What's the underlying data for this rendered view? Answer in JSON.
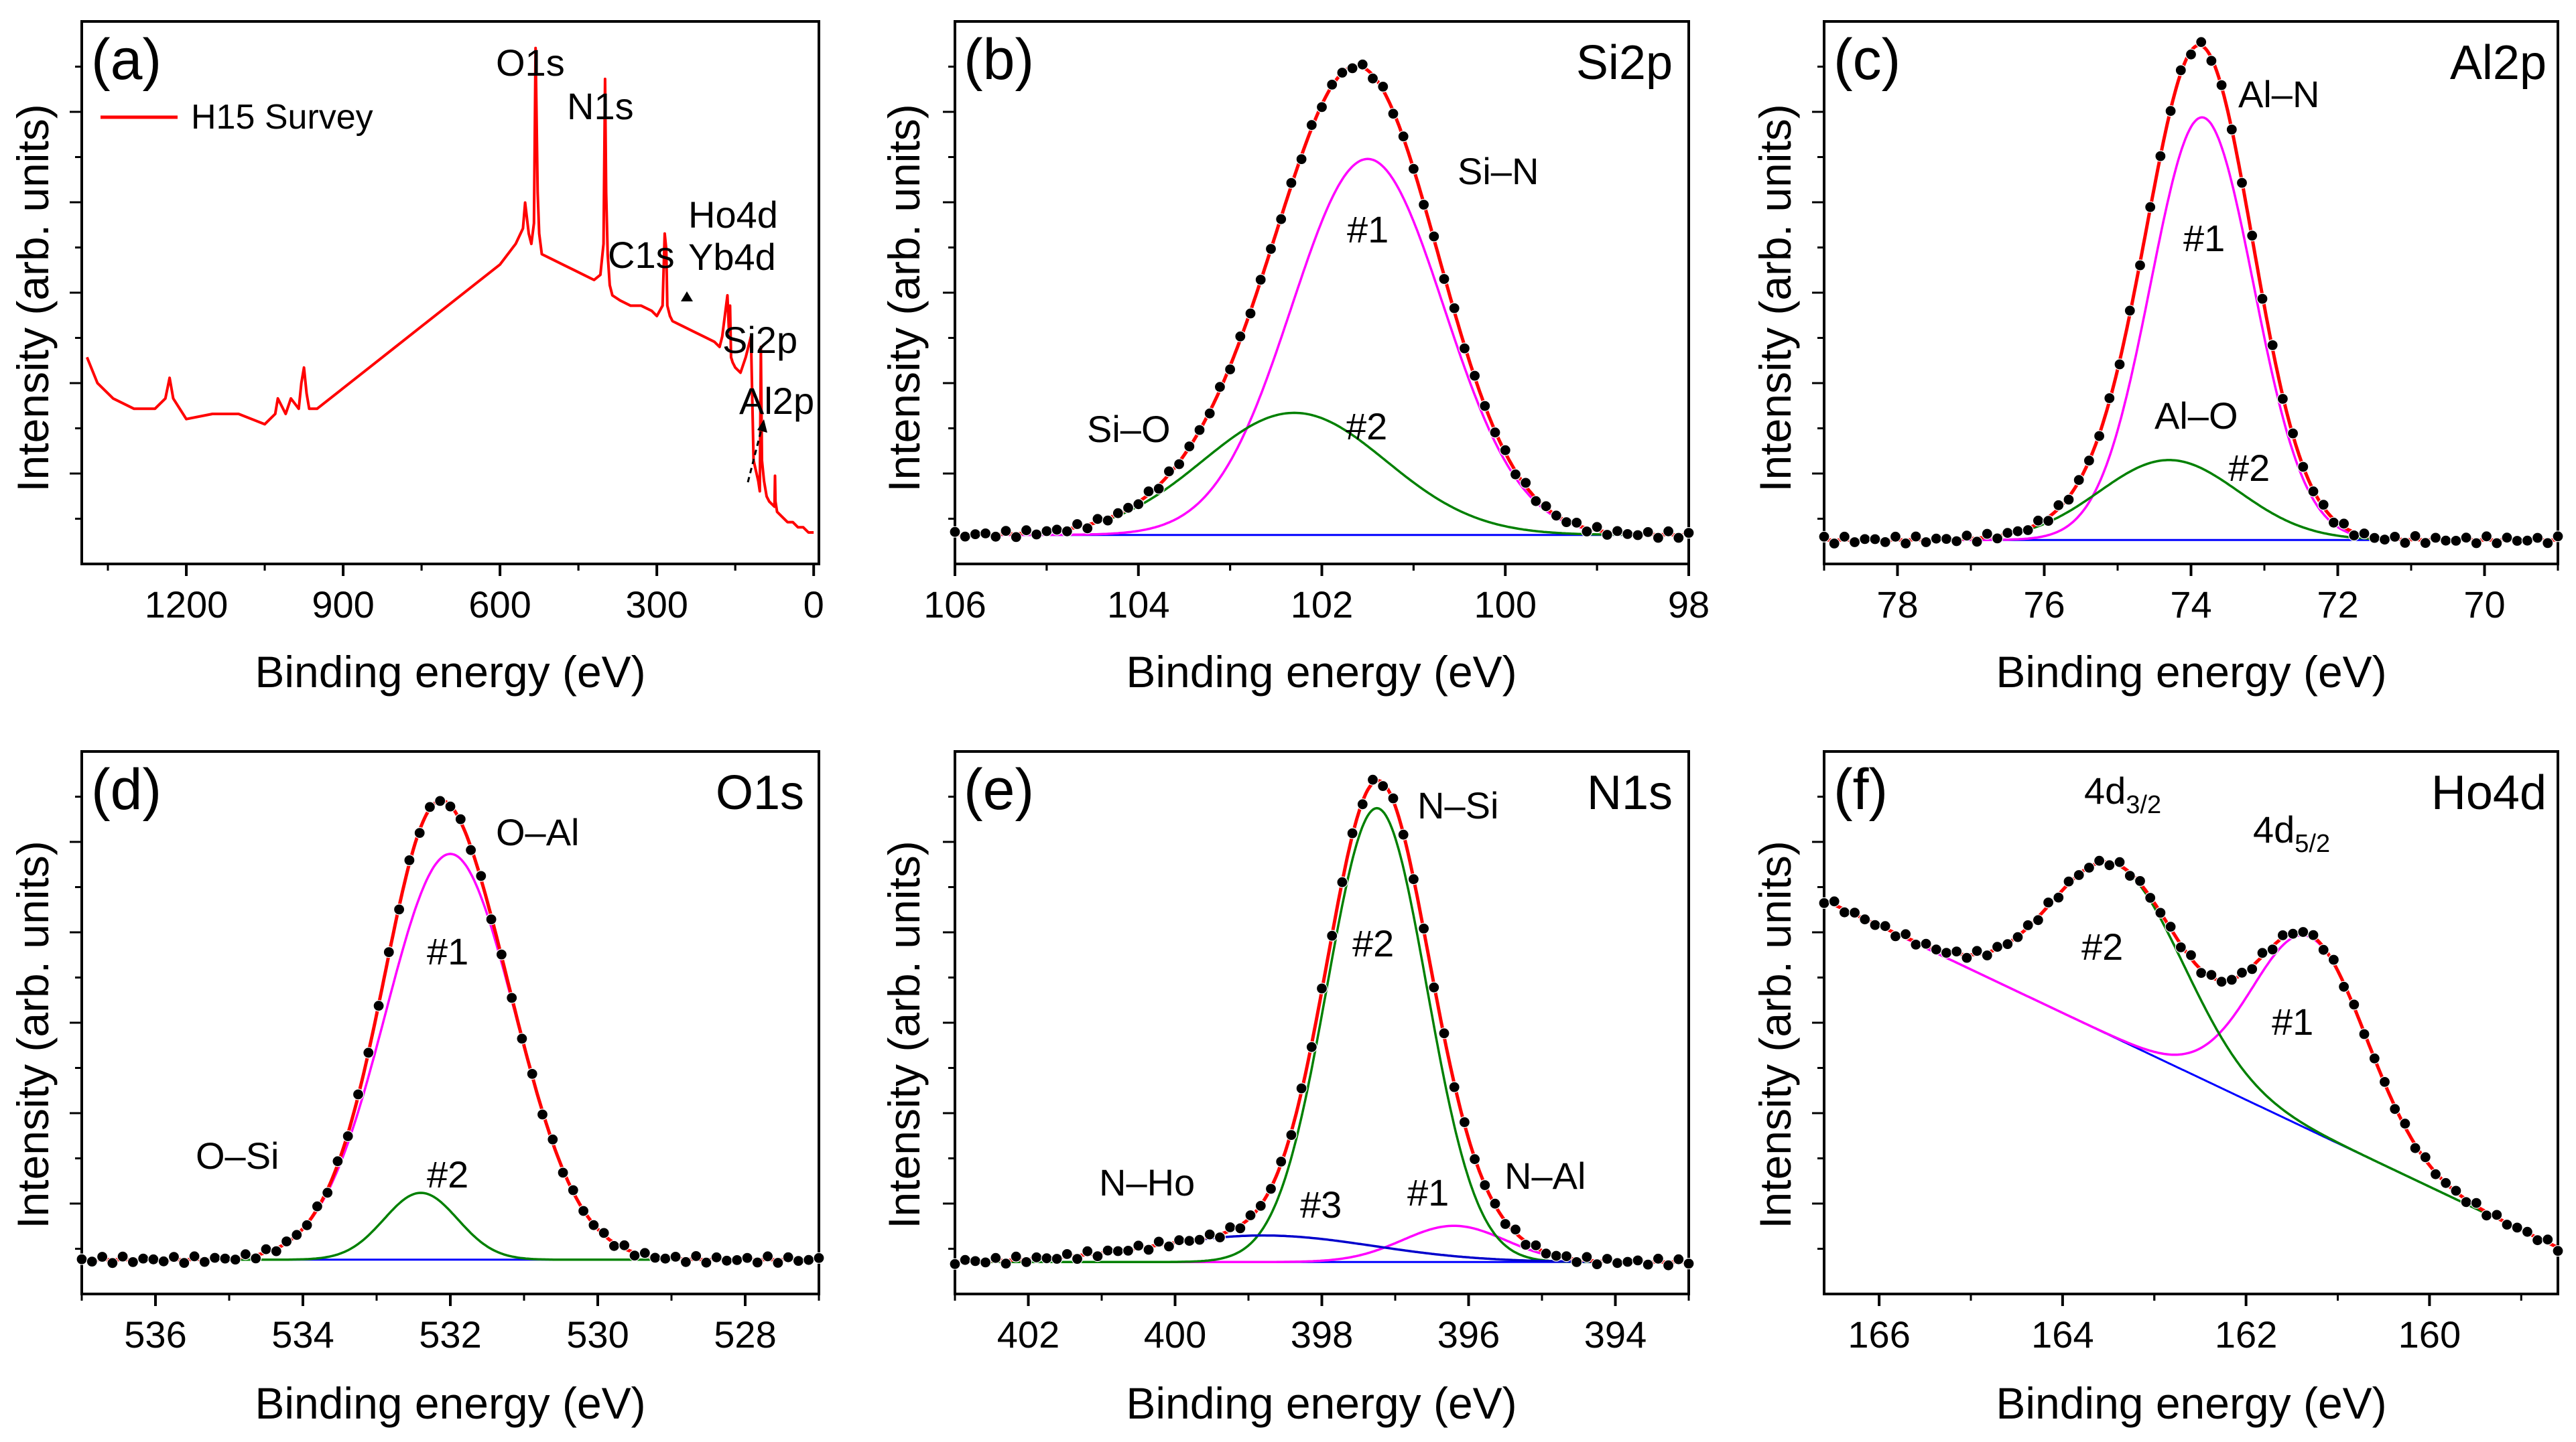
{
  "figure": {
    "background": "#ffffff"
  },
  "colors": {
    "envelope": "#ff0000",
    "peak1": "#ff00ff",
    "peak2": "#008000",
    "peak3": "#0000cc",
    "background_line": "#0000ff",
    "data": "#000000"
  },
  "chart_data": [
    {
      "id": "a",
      "type": "line",
      "panel_label": "(a)",
      "title": "",
      "xlabel": "Binding energy (eV)",
      "ylabel": "Intensity (arb. units)",
      "xlim": [
        1400,
        -10
      ],
      "ylim": [
        0,
        100
      ],
      "xticks": [
        1200,
        900,
        600,
        300,
        0
      ],
      "legend": {
        "entries": [
          "H15 Survey"
        ],
        "position": "top-left"
      },
      "series": [
        {
          "name": "H15 Survey",
          "color": "#ff0000",
          "x": [
            1390,
            1370,
            1340,
            1300,
            1260,
            1240,
            1232,
            1225,
            1200,
            1150,
            1100,
            1050,
            1030,
            1025,
            1010,
            1000,
            985,
            980,
            975,
            970,
            965,
            950,
            900,
            850,
            800,
            750,
            700,
            650,
            600,
            570,
            556,
            552,
            545,
            540,
            535,
            532,
            528,
            525,
            520,
            500,
            480,
            460,
            440,
            420,
            408,
            402,
            399,
            397,
            394,
            390,
            385,
            370,
            350,
            330,
            310,
            300,
            289,
            285,
            282,
            280,
            275,
            270,
            250,
            230,
            210,
            190,
            180,
            175,
            165,
            162,
            160,
            158,
            155,
            150,
            140,
            130,
            120,
            115,
            106,
            103,
            101,
            99,
            95,
            90,
            85,
            75,
            74,
            73,
            70,
            60,
            50,
            40,
            30,
            20,
            10,
            5,
            0
          ],
          "y": [
            38,
            33,
            30,
            28,
            28,
            30,
            34,
            30,
            26,
            27,
            27,
            25,
            27,
            30,
            27,
            30,
            28,
            33,
            36,
            31,
            28,
            28,
            32,
            36,
            40,
            44,
            48,
            52,
            56,
            60,
            63,
            68,
            62,
            60,
            64,
            98,
            70,
            62,
            58,
            57,
            56,
            55,
            54,
            53,
            54,
            60,
            92,
            70,
            58,
            52,
            50,
            49,
            48,
            48,
            47,
            46,
            48,
            62,
            59,
            48,
            46,
            45,
            44,
            43,
            42,
            41,
            40,
            42,
            50,
            43,
            48,
            38,
            37,
            36,
            35,
            38,
            42,
            18,
            14,
            12,
            40,
            18,
            14,
            11,
            10,
            9,
            15,
            10,
            8,
            7,
            6,
            6,
            5,
            5,
            4,
            4,
            4
          ]
        }
      ],
      "annotations": [
        "O1s",
        "N1s",
        "C1s",
        "Ho4d",
        "Yb4d",
        "Si2p",
        "Al2p"
      ]
    },
    {
      "id": "b",
      "type": "line",
      "panel_label": "(b)",
      "title": "Si2p",
      "xlabel": "Binding energy (eV)",
      "ylabel": "Intensity (arb. units)",
      "xlim": [
        106,
        98
      ],
      "ylim": [
        0,
        100
      ],
      "xticks": [
        106,
        104,
        102,
        100,
        98
      ],
      "baseline": 1.5,
      "peaks": [
        {
          "name": "#1",
          "label": "Si–N",
          "center": 101.5,
          "height": 77,
          "sigma": 0.83
        },
        {
          "name": "#2",
          "label": "Si–O",
          "center": 102.3,
          "height": 25,
          "sigma": 1.0
        }
      ],
      "annotations": [
        "Si–N",
        "#1",
        "Si–O",
        "#2"
      ]
    },
    {
      "id": "c",
      "type": "line",
      "panel_label": "(c)",
      "title": "Al2p",
      "xlabel": "Binding energy (eV)",
      "ylabel": "Intensity (arb. units)",
      "xlim": [
        79,
        69
      ],
      "ylim": [
        0,
        100
      ],
      "xticks": [
        78,
        76,
        74,
        72,
        70
      ],
      "baseline": 1.5,
      "peaks": [
        {
          "name": "#1",
          "label": "Al–N",
          "center": 73.85,
          "height": 82,
          "sigma": 0.7
        },
        {
          "name": "#2",
          "label": "Al–O",
          "center": 74.3,
          "height": 15.5,
          "sigma": 0.95
        }
      ],
      "annotations": [
        "Al–N",
        "#1",
        "Al–O",
        "#2"
      ]
    },
    {
      "id": "d",
      "type": "line",
      "panel_label": "(d)",
      "title": "O1s",
      "xlabel": "Binding energy (eV)",
      "ylabel": "Intensity (arb. units)",
      "xlim": [
        537,
        527
      ],
      "ylim": [
        0,
        100
      ],
      "xticks": [
        536,
        534,
        532,
        530,
        528
      ],
      "baseline": 1.5,
      "peaks": [
        {
          "name": "#1",
          "label": "O–Al",
          "center": 532.0,
          "height": 85,
          "sigma": 0.88
        },
        {
          "name": "#2",
          "label": "O–Si",
          "center": 532.4,
          "height": 14,
          "sigma": 0.5
        }
      ],
      "annotations": [
        "O–Al",
        "#1",
        "O–Si",
        "#2"
      ]
    },
    {
      "id": "e",
      "type": "line",
      "panel_label": "(e)",
      "title": "N1s",
      "xlabel": "Binding energy (eV)",
      "ylabel": "Intensity (arb. units)",
      "xlim": [
        403,
        393
      ],
      "ylim": [
        0,
        100
      ],
      "xticks": [
        402,
        400,
        398,
        396,
        394
      ],
      "baseline": 1.0,
      "peaks": [
        {
          "name": "#1",
          "label": "N–Al",
          "center": 396.2,
          "height": 7.5,
          "sigma": 0.7
        },
        {
          "name": "#2",
          "label": "N–Si",
          "center": 397.25,
          "height": 94,
          "sigma": 0.68
        },
        {
          "name": "#3",
          "label": "N–Ho",
          "center": 398.8,
          "height": 5.5,
          "sigma": 1.5
        }
      ],
      "annotations": [
        "N–Si",
        "#2",
        "N–Ho",
        "#3",
        "#1",
        "N–Al"
      ]
    },
    {
      "id": "f",
      "type": "line",
      "panel_label": "(f)",
      "title": "Ho4d",
      "xlabel": "Binding energy (eV)",
      "ylabel": "Intensity (arb. units)",
      "xlim": [
        166.6,
        158.6
      ],
      "ylim": [
        0,
        100
      ],
      "xticks": [
        166,
        164,
        162,
        160
      ],
      "background_line": {
        "x": [
          166.6,
          158.6
        ],
        "y": [
          76,
          4
        ]
      },
      "peaks": [
        {
          "name": "#1",
          "label": "4d5/2",
          "center": 161.3,
          "height": 40,
          "sigma": 0.62
        },
        {
          "name": "#2",
          "label": "4d3/2",
          "center": 163.4,
          "height": 36,
          "sigma": 0.72
        }
      ],
      "annotations": [
        "4d3/2",
        "#2",
        "4d5/2",
        "#1"
      ]
    }
  ]
}
